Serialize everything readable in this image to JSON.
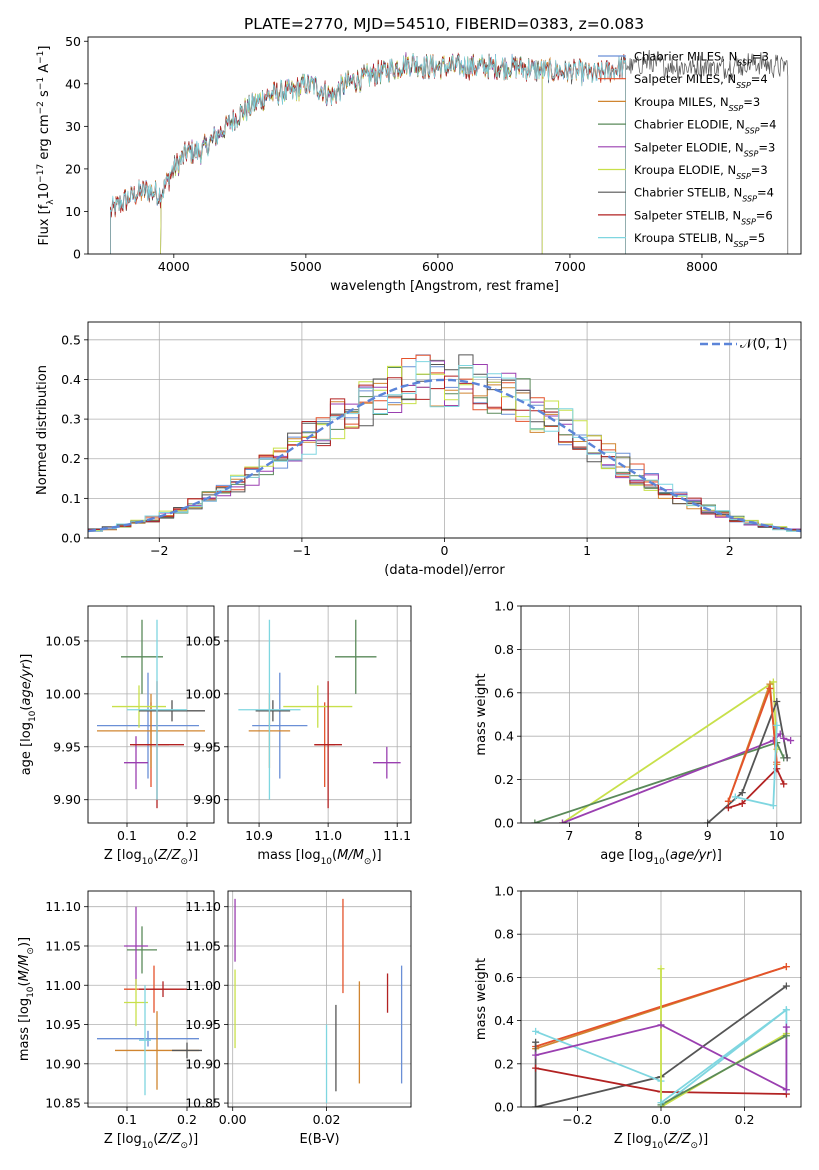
{
  "title": "PLATE=2770, MJD=54510, FIBERID=0383, z=0.083",
  "colors": {
    "Chabrier MILES": "#6a8fd6",
    "Salpeter MILES": "#e4522b",
    "Kroupa MILES": "#d08530",
    "Chabrier ELODIE": "#5a8a5a",
    "Salpeter ELODIE": "#9a3fb0",
    "Kroupa ELODIE": "#c8e04a",
    "Chabrier STELIB": "#555555",
    "Salpeter STELIB": "#b22222",
    "Kroupa STELIB": "#7fd6e0"
  },
  "chart_data": [
    {
      "id": "spectrum",
      "type": "line",
      "title": "PLATE=2770, MJD=54510, FIBERID=0383, z=0.083",
      "xlabel": "wavelength [Angstrom, rest frame]",
      "ylabel": "Flux [f_λ 10^-17 erg cm^-2 s^-1 A^-1]",
      "xlim": [
        3350,
        8750
      ],
      "ylim": [
        0,
        51
      ],
      "xticks": [
        4000,
        5000,
        6000,
        7000,
        8000
      ],
      "yticks": [
        0,
        10,
        20,
        30,
        40,
        50
      ],
      "legend": "top-right",
      "grid": false,
      "series": [
        {
          "name": "Chabrier MILES",
          "nssp": "3",
          "start": 3520,
          "end": 7420
        },
        {
          "name": "Salpeter MILES",
          "nssp": "4",
          "start": 3520,
          "end": 7420
        },
        {
          "name": "Kroupa MILES",
          "nssp": "3",
          "start": 3520,
          "end": 7420
        },
        {
          "name": "Chabrier ELODIE",
          "nssp": "4",
          "start": 3900,
          "end": 6790
        },
        {
          "name": "Salpeter ELODIE",
          "nssp": "3",
          "start": 3900,
          "end": 6790
        },
        {
          "name": "Kroupa ELODIE",
          "nssp": "3",
          "start": 3900,
          "end": 6790
        },
        {
          "name": "Chabrier STELIB",
          "nssp": "4",
          "start": 3520,
          "end": 8650
        },
        {
          "name": "Salpeter STELIB",
          "nssp": "6",
          "start": 3520,
          "end": 7420
        },
        {
          "name": "Kroupa STELIB",
          "nssp": "5",
          "start": 3520,
          "end": 7420
        }
      ],
      "continuum": {
        "x": [
          3520,
          3600,
          3700,
          3800,
          3900,
          4000,
          4100,
          4200,
          4300,
          4400,
          4500,
          4600,
          4700,
          4800,
          4900,
          5000,
          5100,
          5200,
          5300,
          5400,
          5500,
          5600,
          5700,
          5800,
          5900,
          6000,
          6200,
          6400,
          6600,
          6800,
          7000,
          7200,
          7400,
          7600,
          7800,
          8000,
          8200,
          8400,
          8650
        ],
        "y": [
          10,
          12,
          14,
          15,
          14,
          20,
          24,
          24,
          27,
          30,
          33,
          35,
          37,
          38,
          38,
          40,
          39,
          37,
          40,
          41,
          42,
          43,
          44,
          45,
          44,
          44,
          44,
          44,
          44,
          43,
          43,
          42,
          44,
          45,
          44,
          44,
          44,
          45,
          44
        ]
      }
    },
    {
      "id": "residuals",
      "type": "bar",
      "xlabel": "(data-model)/error",
      "ylabel": "Normed distribution",
      "xlim": [
        -2.5,
        2.5
      ],
      "ylim": [
        0,
        0.545
      ],
      "xticks": [
        -2,
        -1,
        0,
        1,
        2
      ],
      "yticks": [
        0,
        0.1,
        0.2,
        0.3,
        0.4,
        0.5
      ],
      "grid": true,
      "legend": "top-right",
      "legend_label": "𝒩(0, 1)",
      "bin_width": 0.1,
      "bin_start": -2.5
    },
    {
      "id": "age-vs-Z",
      "type": "scatter",
      "xlabel": "Z [log10(Z/Z⊙)]",
      "ylabel": "age [log10(age/yr)]",
      "xlim": [
        0.035,
        0.245
      ],
      "ylim": [
        9.878,
        10.083
      ],
      "xticks": [
        0.1,
        0.2
      ],
      "yticks": [
        9.9,
        9.95,
        10.0,
        10.05
      ],
      "grid": true,
      "points": [
        {
          "series": "Chabrier MILES",
          "x": 0.135,
          "y": 9.97,
          "xerr": 0.085,
          "yerr": 0.05
        },
        {
          "series": "Salpeter MILES",
          "x": 0.14,
          "y": 9.952,
          "xerr": 0.03,
          "yerr": 0.04
        },
        {
          "series": "Kroupa MILES",
          "x": 0.14,
          "y": 9.965,
          "xerr": 0.09,
          "yerr": 0.035
        },
        {
          "series": "Chabrier ELODIE",
          "x": 0.125,
          "y": 10.035,
          "xerr": 0.035,
          "yerr": 0.035
        },
        {
          "series": "Salpeter ELODIE",
          "x": 0.115,
          "y": 9.935,
          "xerr": 0.02,
          "yerr": 0.025
        },
        {
          "series": "Kroupa ELODIE",
          "x": 0.12,
          "y": 9.988,
          "xerr": 0.045,
          "yerr": 0.02
        },
        {
          "series": "Chabrier STELIB",
          "x": 0.175,
          "y": 9.984,
          "xerr": 0.055,
          "yerr": 0.01
        },
        {
          "series": "Salpeter STELIB",
          "x": 0.15,
          "y": 9.952,
          "xerr": 0.045,
          "yerr": 0.06
        },
        {
          "series": "Kroupa STELIB",
          "x": 0.15,
          "y": 9.985,
          "xerr": 0.05,
          "yerr": 0.085
        }
      ]
    },
    {
      "id": "age-vs-mass",
      "type": "scatter",
      "xlabel": "mass [log10(M/M⊙)]",
      "ylabel": "",
      "xlim": [
        10.855,
        11.12
      ],
      "ylim": [
        9.878,
        10.083
      ],
      "xticks": [
        10.9,
        11.0,
        11.1
      ],
      "yticks": [
        9.9,
        9.95,
        10.0,
        10.05
      ],
      "grid": true,
      "points": [
        {
          "series": "Chabrier MILES",
          "x": 10.93,
          "y": 9.97,
          "xerr": 0.04,
          "yerr": 0.05
        },
        {
          "series": "Salpeter MILES",
          "x": 10.995,
          "y": 9.952,
          "xerr": 0.015,
          "yerr": 0.04
        },
        {
          "series": "Kroupa MILES",
          "x": 10.915,
          "y": 9.965,
          "xerr": 0.03,
          "yerr": 0.035
        },
        {
          "series": "Chabrier ELODIE",
          "x": 11.04,
          "y": 10.035,
          "xerr": 0.03,
          "yerr": 0.035
        },
        {
          "series": "Salpeter ELODIE",
          "x": 11.085,
          "y": 9.935,
          "xerr": 0.02,
          "yerr": 0.015
        },
        {
          "series": "Kroupa ELODIE",
          "x": 10.985,
          "y": 9.988,
          "xerr": 0.05,
          "yerr": 0.02
        },
        {
          "series": "Chabrier STELIB",
          "x": 10.92,
          "y": 9.984,
          "xerr": 0.025,
          "yerr": 0.01
        },
        {
          "series": "Salpeter STELIB",
          "x": 11.0,
          "y": 9.952,
          "xerr": 0.02,
          "yerr": 0.06
        },
        {
          "series": "Kroupa STELIB",
          "x": 10.915,
          "y": 9.985,
          "xerr": 0.045,
          "yerr": 0.085
        }
      ]
    },
    {
      "id": "mass-weight-vs-age",
      "type": "line",
      "xlabel": "age [log10(age/yr)]",
      "ylabel": "mass weight",
      "xlim": [
        6.3,
        10.35
      ],
      "ylim": [
        0,
        1
      ],
      "xticks": [
        7,
        8,
        9,
        10
      ],
      "yticks": [
        0.0,
        0.2,
        0.4,
        0.6,
        0.8,
        1.0
      ],
      "grid": true,
      "series": [
        {
          "name": "Kroupa ELODIE",
          "x": [
            6.9,
            9.95,
            10.0
          ],
          "y": [
            0.0,
            0.65,
            0.34
          ]
        },
        {
          "name": "Chabrier ELODIE",
          "x": [
            6.5,
            10.0,
            10.1
          ],
          "y": [
            0.0,
            0.37,
            0.3
          ]
        },
        {
          "name": "Salpeter ELODIE",
          "x": [
            6.9,
            9.95,
            10.05
          ],
          "y": [
            0.0,
            0.38,
            0.41
          ]
        },
        {
          "name": "Chabrier STELIB",
          "x": [
            9.0,
            9.5,
            10.0,
            10.15
          ],
          "y": [
            0.0,
            0.14,
            0.56,
            0.3
          ]
        },
        {
          "name": "Kroupa MILES",
          "x": [
            9.3,
            9.9,
            10.0
          ],
          "y": [
            0.1,
            0.64,
            0.27
          ]
        },
        {
          "name": "Salpeter MILES",
          "x": [
            9.3,
            9.9,
            10.0
          ],
          "y": [
            0.1,
            0.62,
            0.28
          ]
        },
        {
          "name": "Salpeter STELIB",
          "x": [
            9.3,
            9.5,
            10.0,
            10.1
          ],
          "y": [
            0.07,
            0.09,
            0.25,
            0.18
          ]
        },
        {
          "name": "Kroupa STELIB",
          "x": [
            9.4,
            9.95,
            10.0
          ],
          "y": [
            0.12,
            0.08,
            0.45
          ]
        },
        {
          "name": "Salpeter ELODIE",
          "x": [
            10.1,
            10.2
          ],
          "y": [
            0.39,
            0.38
          ]
        }
      ]
    },
    {
      "id": "mass-vs-Z",
      "type": "scatter",
      "xlabel": "Z [log10(Z/Z⊙)]",
      "ylabel": "mass [log10(M/M⊙)]",
      "xlim": [
        0.035,
        0.245
      ],
      "ylim": [
        10.845,
        11.12
      ],
      "xticks": [
        0.1,
        0.2
      ],
      "yticks": [
        10.85,
        10.9,
        10.95,
        11.0,
        11.05,
        11.1
      ],
      "grid": true,
      "points": [
        {
          "series": "Chabrier MILES",
          "x": 0.135,
          "y": 10.932,
          "xerr": 0.085,
          "yerr": 0.01
        },
        {
          "series": "Salpeter MILES",
          "x": 0.145,
          "y": 10.995,
          "xerr": 0.05,
          "yerr": 0.03
        },
        {
          "series": "Kroupa MILES",
          "x": 0.15,
          "y": 10.917,
          "xerr": 0.07,
          "yerr": 0.05
        },
        {
          "series": "Chabrier ELODIE",
          "x": 0.125,
          "y": 11.045,
          "xerr": 0.025,
          "yerr": 0.03
        },
        {
          "series": "Salpeter ELODIE",
          "x": 0.115,
          "y": 11.05,
          "xerr": 0.02,
          "yerr": 0.05
        },
        {
          "series": "Kroupa ELODIE",
          "x": 0.115,
          "y": 10.978,
          "xerr": 0.02,
          "yerr": 0.03
        },
        {
          "series": "Chabrier STELIB",
          "x": 0.2,
          "y": 10.917,
          "xerr": 0.025,
          "yerr": 0.01
        },
        {
          "series": "Salpeter STELIB",
          "x": 0.16,
          "y": 10.995,
          "xerr": 0.04,
          "yerr": 0.01
        },
        {
          "series": "Kroupa STELIB",
          "x": 0.13,
          "y": 10.93,
          "xerr": 0.01,
          "yerr": 0.07
        }
      ]
    },
    {
      "id": "mass-vs-EBV",
      "type": "scatter",
      "xlabel": "E(B-V)",
      "ylabel": "",
      "xlim": [
        -0.001,
        0.038
      ],
      "ylim": [
        10.845,
        11.12
      ],
      "xticks": [
        0.0,
        0.02
      ],
      "yticks": [
        10.85,
        10.9,
        10.95,
        11.0,
        11.05,
        11.1
      ],
      "grid": true,
      "points": [
        {
          "series": "Salpeter ELODIE",
          "x": 0.0005,
          "y": 11.07,
          "yerr": 0.04
        },
        {
          "series": "Kroupa ELODIE",
          "x": 0.0005,
          "y": 10.97,
          "yerr": 0.05
        },
        {
          "series": "Kroupa STELIB",
          "x": 0.02,
          "y": 10.9,
          "yerr": 0.05
        },
        {
          "series": "Chabrier STELIB",
          "x": 0.022,
          "y": 10.92,
          "yerr": 0.055
        },
        {
          "series": "Kroupa MILES",
          "x": 0.027,
          "y": 10.94,
          "yerr": 0.065
        },
        {
          "series": "Salpeter STELIB",
          "x": 0.033,
          "y": 10.99,
          "yerr": 0.025
        },
        {
          "series": "Chabrier MILES",
          "x": 0.036,
          "y": 10.95,
          "yerr": 0.075
        },
        {
          "series": "Salpeter MILES",
          "x": 0.0235,
          "y": 11.05,
          "yerr": 0.06
        }
      ]
    },
    {
      "id": "mass-weight-vs-Z",
      "type": "line",
      "xlabel": "Z [log10(Z/Z⊙)]",
      "ylabel": "mass weight",
      "xlim": [
        -0.335,
        0.335
      ],
      "ylim": [
        0,
        1
      ],
      "xticks": [
        -0.2,
        0.0,
        0.2
      ],
      "yticks": [
        0.0,
        0.2,
        0.4,
        0.6,
        0.8,
        1.0
      ],
      "grid": true,
      "series": [
        {
          "name": "Kroupa MILES",
          "x": [
            -0.3,
            0.3
          ],
          "y": [
            0.27,
            0.65
          ]
        },
        {
          "name": "Salpeter MILES",
          "x": [
            -0.3,
            0.3
          ],
          "y": [
            0.28,
            0.65
          ]
        },
        {
          "name": "Chabrier STELIB",
          "x": [
            -0.3,
            -0.3,
            0.0,
            0.3
          ],
          "y": [
            0.3,
            0.0,
            0.14,
            0.56
          ]
        },
        {
          "name": "Salpeter STELIB",
          "x": [
            -0.3,
            0.0,
            0.3
          ],
          "y": [
            0.18,
            0.07,
            0.06
          ]
        },
        {
          "name": "Kroupa STELIB",
          "x": [
            -0.3,
            0.0,
            0.0,
            0.3,
            0.3
          ],
          "y": [
            0.35,
            0.12,
            0.0,
            0.45,
            0.08
          ]
        },
        {
          "name": "Kroupa ELODIE",
          "x": [
            0.0,
            0.0,
            0.3
          ],
          "y": [
            0.64,
            0.0,
            0.34
          ]
        },
        {
          "name": "Salpeter ELODIE",
          "x": [
            -0.3,
            0.0,
            0.3,
            0.3
          ],
          "y": [
            0.24,
            0.38,
            0.08,
            0.37
          ]
        },
        {
          "name": "Chabrier ELODIE",
          "x": [
            0.0,
            0.3
          ],
          "y": [
            0.01,
            0.33
          ]
        },
        {
          "name": "Kroupa STELIB",
          "x": [
            0.0,
            0.3
          ],
          "y": [
            0.02,
            0.45
          ]
        }
      ]
    }
  ]
}
